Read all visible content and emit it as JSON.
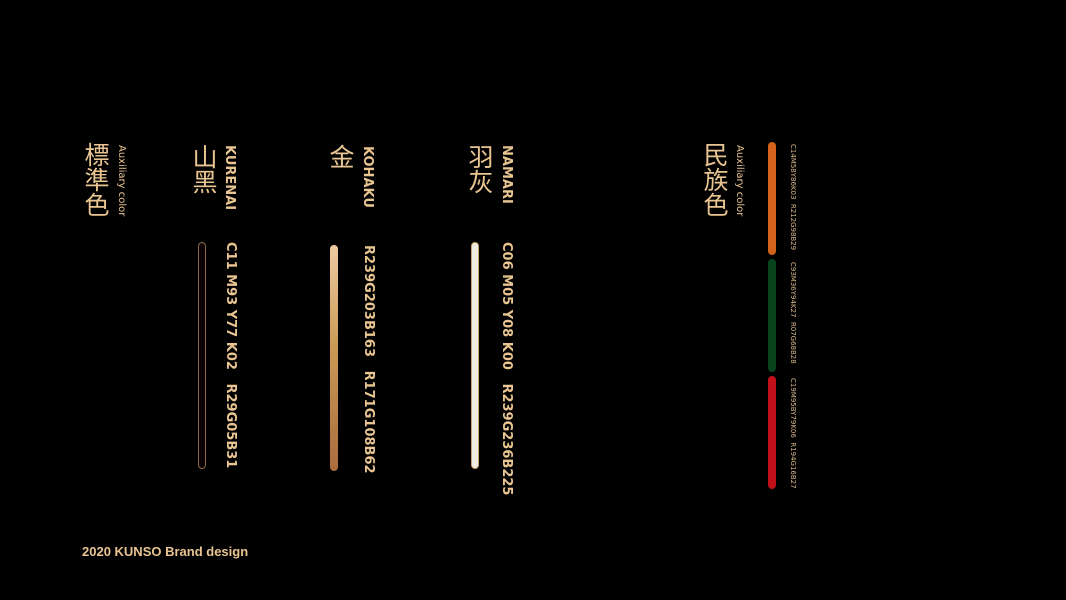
{
  "standard": {
    "title": "標準色",
    "subtitle": "Auxiliary color",
    "colors": [
      {
        "kanji": "山黑",
        "name": "KURENAI",
        "values": "C11 M93 Y77 K02   R29G05B31",
        "swatch": "#1d051f",
        "border": "#8a6a45"
      },
      {
        "kanji": "金",
        "name": "KOHAKU",
        "values": "R239G203B163   R171G108B62",
        "swatch_from": "#efcba3",
        "swatch_to": "#ab6c3e"
      },
      {
        "kanji": "羽灰",
        "name": "NAMARI",
        "values": "C06 M05 Y08 K00   R239G236B225",
        "swatch": "#efece1",
        "border": "#c9a46c"
      }
    ]
  },
  "ethnic": {
    "title": "民族色",
    "subtitle": "Auxiliary color",
    "colors": [
      {
        "values": "C14M58Y86K03  R212G98B29",
        "swatch": "#d4621d"
      },
      {
        "values": "C93M36Y94K27  R07G68B28",
        "swatch": "#07441c"
      },
      {
        "values": "C19M95BY79K06  R194G16B27",
        "swatch": "#c2101b"
      }
    ]
  },
  "footer": "2020 KUNSO Brand design"
}
